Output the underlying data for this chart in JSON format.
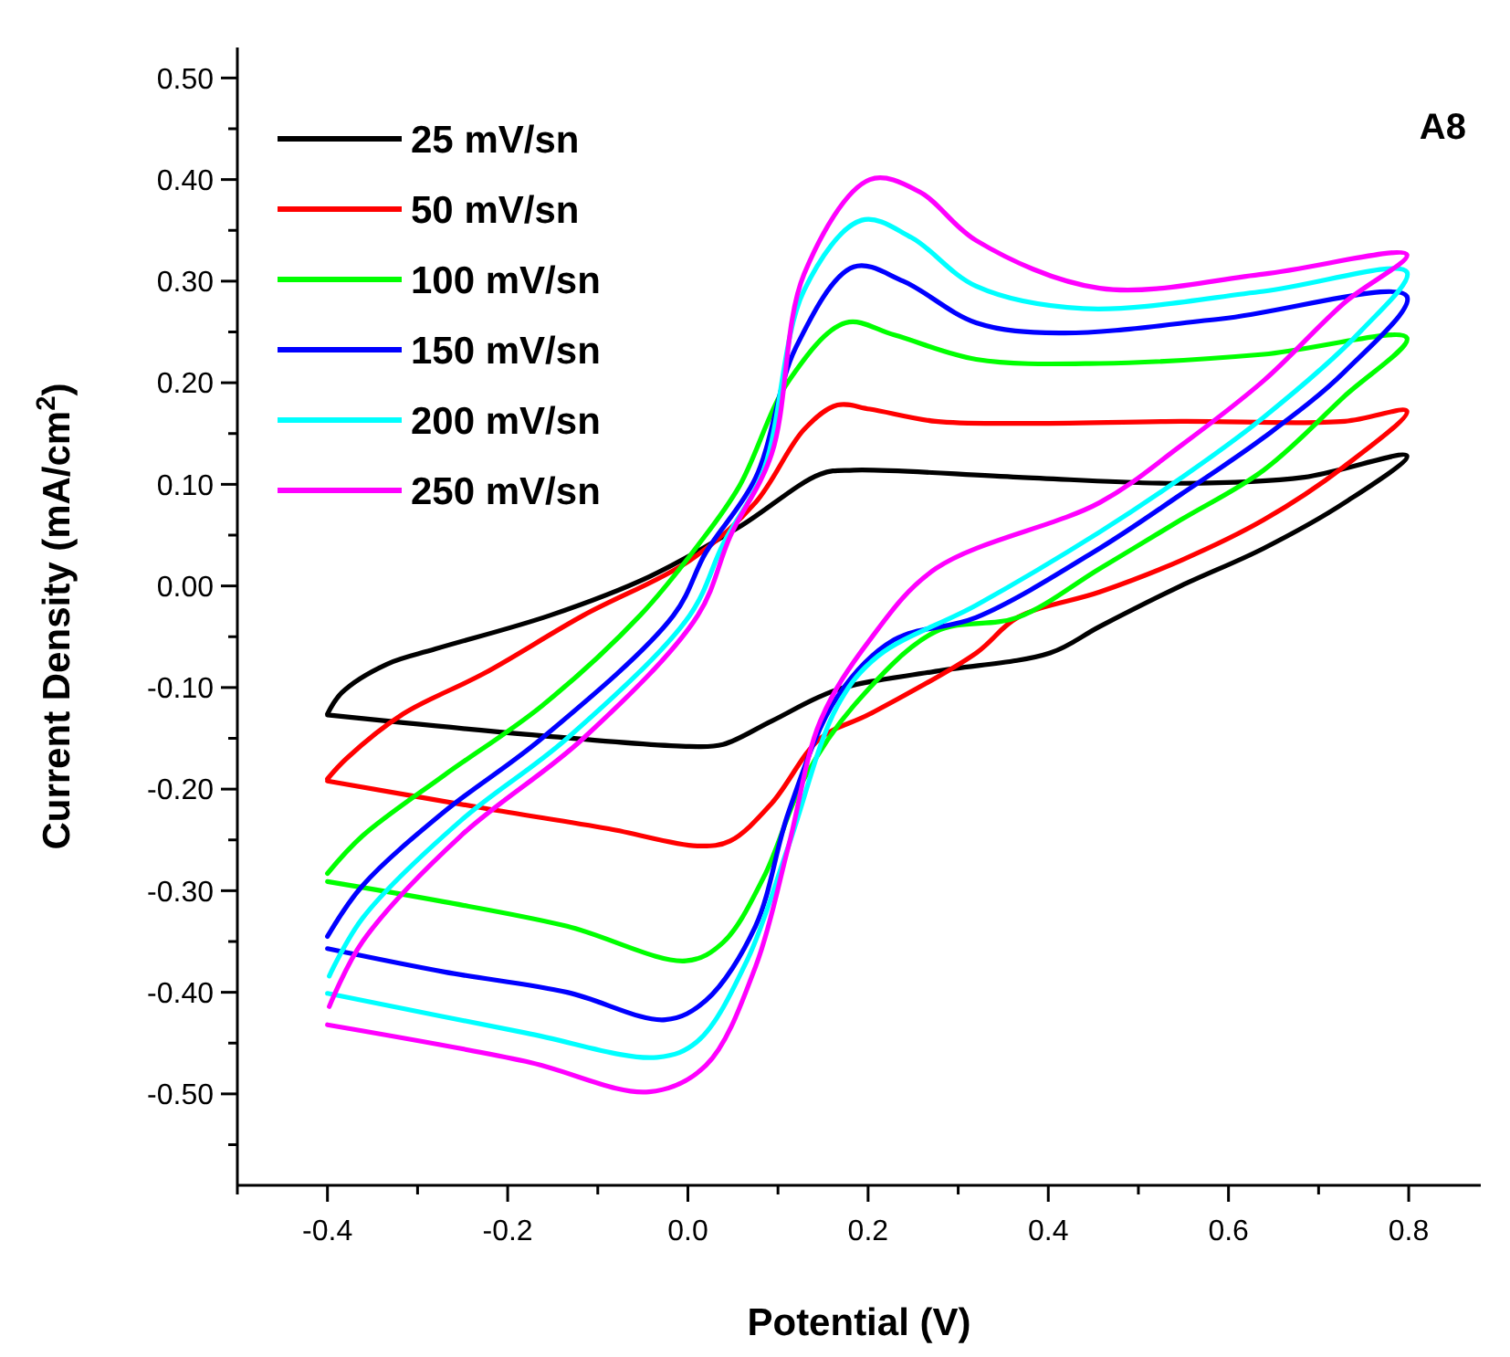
{
  "chart_data": {
    "type": "line",
    "xlabel": "Potential (V)",
    "ylabel": "Current Density (mA/cm$^{2}$)",
    "annotations": [
      "A8"
    ],
    "xlim": [
      -0.5,
      0.88
    ],
    "ylim": [
      -0.59,
      0.53
    ],
    "xticks": [
      {
        "value": -0.5,
        "label": null
      },
      {
        "value": -0.4,
        "label": "-0.4"
      },
      {
        "value": -0.3,
        "label": null
      },
      {
        "value": -0.2,
        "label": "-0.2"
      },
      {
        "value": -0.1,
        "label": null
      },
      {
        "value": 0,
        "label": "0.0"
      },
      {
        "value": 0.1,
        "label": null
      },
      {
        "value": 0.2,
        "label": "0.2"
      },
      {
        "value": 0.3,
        "label": null
      },
      {
        "value": 0.4,
        "label": "0.4"
      },
      {
        "value": 0.5,
        "label": null
      },
      {
        "value": 0.6,
        "label": "0.6"
      },
      {
        "value": 0.7,
        "label": null
      },
      {
        "value": 0.8,
        "label": "0.8"
      }
    ],
    "yticks": [
      {
        "value": -0.55,
        "label": null
      },
      {
        "value": -0.5,
        "label": "-0.50"
      },
      {
        "value": -0.45,
        "label": null
      },
      {
        "value": -0.4,
        "label": "-0.40"
      },
      {
        "value": -0.35,
        "label": null
      },
      {
        "value": -0.3,
        "label": "-0.30"
      },
      {
        "value": -0.25,
        "label": null
      },
      {
        "value": -0.2,
        "label": "-0.20"
      },
      {
        "value": -0.15,
        "label": null
      },
      {
        "value": -0.1,
        "label": "-0.10"
      },
      {
        "value": -0.05,
        "label": null
      },
      {
        "value": 0,
        "label": "0.00"
      },
      {
        "value": 0.05,
        "label": null
      },
      {
        "value": 0.1,
        "label": "0.10"
      },
      {
        "value": 0.15,
        "label": null
      },
      {
        "value": 0.2,
        "label": "0.20"
      },
      {
        "value": 0.25,
        "label": null
      },
      {
        "value": 0.3,
        "label": "0.30"
      },
      {
        "value": 0.35,
        "label": null
      },
      {
        "value": 0.4,
        "label": "0.40"
      },
      {
        "value": 0.45,
        "label": null
      },
      {
        "value": 0.5,
        "label": "0.50"
      }
    ],
    "grid": false,
    "legend": "top left",
    "marker": "none",
    "line_style": "solid",
    "series": [
      {
        "name": "25 mV/sn",
        "color": "#000000",
        "x": [
          -0.4,
          -0.384,
          -0.334,
          -0.28,
          -0.153,
          -0.043,
          0.057,
          0.147,
          0.184,
          0.367,
          0.547,
          0.684,
          0.798,
          0.729,
          0.639,
          0.547,
          0.457,
          0.402,
          0.275,
          0.166,
          0.093,
          0.039,
          0.002,
          -0.18,
          -0.4
        ],
        "values": [
          -0.126,
          -0.105,
          -0.077,
          -0.062,
          -0.029,
          0.009,
          0.058,
          0.11,
          0.114,
          0.107,
          0.101,
          0.107,
          0.128,
          0.082,
          0.037,
          0.0,
          -0.04,
          -0.066,
          -0.084,
          -0.102,
          -0.133,
          -0.156,
          -0.158,
          -0.146,
          -0.127
        ]
      },
      {
        "name": "50 mV/sn",
        "color": "#ff0000",
        "x": [
          -0.4,
          -0.379,
          -0.316,
          -0.226,
          -0.116,
          0.002,
          0.075,
          0.129,
          0.166,
          0.202,
          0.275,
          0.367,
          0.547,
          0.729,
          0.798,
          0.729,
          0.639,
          0.547,
          0.457,
          0.366,
          0.32,
          0.202,
          0.147,
          0.093,
          0.047,
          0.012,
          -0.088,
          -0.225,
          -0.4
        ],
        "values": [
          -0.19,
          -0.17,
          -0.126,
          -0.086,
          -0.029,
          0.025,
          0.082,
          0.154,
          0.178,
          0.174,
          0.162,
          0.16,
          0.162,
          0.162,
          0.172,
          0.118,
          0.065,
          0.025,
          -0.006,
          -0.031,
          -0.066,
          -0.126,
          -0.15,
          -0.214,
          -0.251,
          -0.256,
          -0.239,
          -0.219,
          -0.192
        ]
      },
      {
        "name": "100 mV/sn",
        "color": "#00ff00",
        "x": [
          -0.4,
          -0.361,
          -0.27,
          -0.162,
          -0.053,
          0.012,
          0.057,
          0.112,
          0.175,
          0.229,
          0.32,
          0.457,
          0.639,
          0.798,
          0.729,
          0.639,
          0.547,
          0.457,
          0.366,
          0.275,
          0.184,
          0.129,
          0.084,
          0.039,
          -0.002,
          -0.134,
          -0.27,
          -0.4
        ],
        "values": [
          -0.283,
          -0.246,
          -0.186,
          -0.118,
          -0.029,
          0.041,
          0.098,
          0.202,
          0.259,
          0.247,
          0.223,
          0.219,
          0.228,
          0.244,
          0.187,
          0.114,
          0.065,
          0.017,
          -0.031,
          -0.045,
          -0.118,
          -0.19,
          -0.287,
          -0.351,
          -0.369,
          -0.335,
          -0.311,
          -0.291
        ]
      },
      {
        "name": "150 mV/sn",
        "color": "#0000ff",
        "x": [
          -0.4,
          -0.361,
          -0.27,
          -0.162,
          -0.016,
          0.02,
          0.075,
          0.12,
          0.184,
          0.239,
          0.32,
          0.412,
          0.593,
          0.798,
          0.729,
          0.639,
          0.547,
          0.457,
          0.32,
          0.229,
          0.166,
          0.112,
          0.075,
          0.02,
          -0.025,
          -0.134,
          -0.27,
          -0.4
        ],
        "values": [
          -0.345,
          -0.295,
          -0.222,
          -0.15,
          -0.029,
          0.033,
          0.106,
          0.235,
          0.314,
          0.3,
          0.259,
          0.249,
          0.263,
          0.285,
          0.211,
          0.146,
          0.09,
          0.037,
          -0.031,
          -0.053,
          -0.109,
          -0.222,
          -0.335,
          -0.408,
          -0.427,
          -0.4,
          -0.38,
          -0.357
        ]
      },
      {
        "name": "200 mV/sn",
        "color": "#00ffff",
        "x": [
          -0.398,
          -0.361,
          -0.252,
          -0.134,
          0.002,
          0.039,
          0.084,
          0.129,
          0.193,
          0.248,
          0.32,
          0.439,
          0.639,
          0.798,
          0.747,
          0.639,
          0.547,
          0.457,
          0.32,
          0.211,
          0.166,
          0.112,
          0.066,
          0.011,
          -0.034,
          -0.18,
          -0.4
        ],
        "values": [
          -0.384,
          -0.327,
          -0.231,
          -0.15,
          -0.029,
          0.041,
          0.114,
          0.291,
          0.36,
          0.343,
          0.295,
          0.273,
          0.29,
          0.309,
          0.251,
          0.166,
          0.106,
          0.053,
          -0.019,
          -0.069,
          -0.118,
          -0.255,
          -0.368,
          -0.448,
          -0.464,
          -0.44,
          -0.401
        ]
      },
      {
        "name": "250 mV/sn",
        "color": "#ff00ff",
        "x": [
          -0.398,
          -0.361,
          -0.252,
          -0.116,
          0.011,
          0.047,
          0.093,
          0.129,
          0.202,
          0.257,
          0.32,
          0.457,
          0.639,
          0.798,
          0.729,
          0.639,
          0.547,
          0.457,
          0.275,
          0.202,
          0.147,
          0.112,
          0.075,
          0.02,
          -0.043,
          -0.18,
          -0.4
        ],
        "values": [
          -0.414,
          -0.35,
          -0.246,
          -0.15,
          -0.029,
          0.049,
          0.13,
          0.307,
          0.4,
          0.388,
          0.34,
          0.293,
          0.307,
          0.326,
          0.279,
          0.202,
          0.138,
          0.082,
          0.017,
          -0.053,
          -0.133,
          -0.255,
          -0.375,
          -0.472,
          -0.498,
          -0.468,
          -0.432
        ]
      }
    ]
  }
}
